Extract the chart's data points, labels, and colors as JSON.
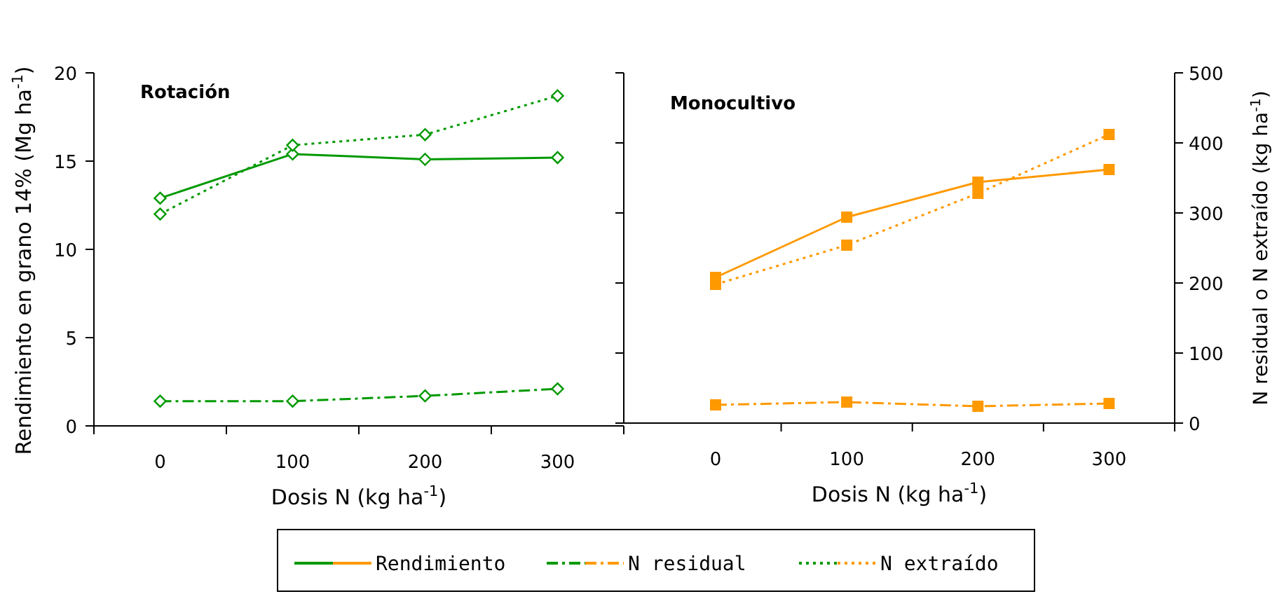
{
  "chart_data": [
    {
      "type": "line",
      "title": "Rotación",
      "xlabel": "Dosis N (kg ha$^{-1}$)",
      "ylabel": "Rendimiento en grano 14% (Mg ha$^{-1}$)",
      "x": [
        0,
        100,
        200,
        300
      ],
      "xlim": [
        -50,
        350
      ],
      "xticks": [
        0,
        100,
        200,
        300,
        {
          "value": -50,
          "label": null
        },
        {
          "value": 50,
          "label": null
        },
        {
          "value": 150,
          "label": null
        },
        {
          "value": 250,
          "label": null
        },
        {
          "value": 350,
          "label": null
        }
      ],
      "ylim": [
        0,
        20
      ],
      "yticks": [
        0,
        5,
        10,
        15,
        20
      ],
      "marker": "diamond",
      "legend": "bottom",
      "series": [
        {
          "name": "Rendimiento",
          "color": "#009900",
          "line_style": "solid",
          "values": [
            12.9,
            15.4,
            15.1,
            15.2
          ]
        },
        {
          "name": "N residual",
          "color": "#009900",
          "line_style": "dashdot",
          "values": [
            1.4,
            1.4,
            1.7,
            2.1
          ]
        },
        {
          "name": "N extraído",
          "color": "#009900",
          "line_style": "dotted",
          "values": [
            12.0,
            15.9,
            16.5,
            18.7
          ]
        }
      ]
    },
    {
      "type": "line",
      "title": "Monocultivo",
      "xlabel": "Dosis N (kg ha$^{-1}$)",
      "y2label": "N residual o N extraído (kg ha$^{-1}$)",
      "x": [
        0,
        100,
        200,
        300
      ],
      "xlim": [
        -70,
        350
      ],
      "xticks": [
        0,
        100,
        200,
        300,
        {
          "value": 50,
          "label": null
        },
        {
          "value": 150,
          "label": null
        },
        {
          "value": 250,
          "label": null
        },
        {
          "value": 350,
          "label": null
        }
      ],
      "y2lim": [
        0,
        500
      ],
      "y2ticks": [
        0,
        100,
        200,
        300,
        400,
        500
      ],
      "marker": "square",
      "series": [
        {
          "name": "Rendimiento",
          "color": "#ff9900",
          "line_style": "solid",
          "axis": "y2",
          "values": [
            208,
            294,
            344,
            362
          ]
        },
        {
          "name": "N residual",
          "color": "#ff9900",
          "line_style": "dashdot",
          "axis": "y2",
          "values": [
            26,
            30,
            24,
            28
          ]
        },
        {
          "name": "N extraído",
          "color": "#ff9900",
          "line_style": "dotted",
          "axis": "y2",
          "values": [
            198,
            254,
            328,
            412
          ]
        }
      ]
    }
  ]
}
